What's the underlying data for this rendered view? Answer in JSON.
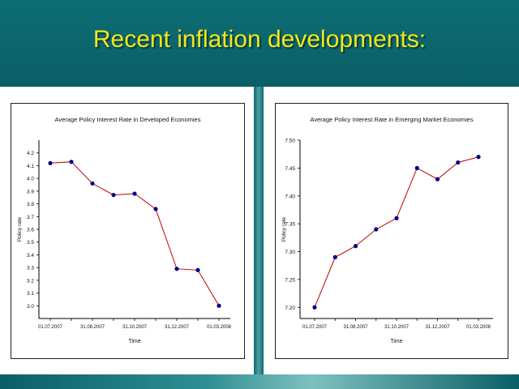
{
  "slide": {
    "title": "Recent inflation developments:"
  },
  "colors": {
    "header_bg": "#0b6a70",
    "title_text": "#f2e61a",
    "series_line": "#c00000",
    "series_marker": "#00008b"
  },
  "chart_data": [
    {
      "type": "line",
      "title": "Average Policy Interest Rate in Developed Economies",
      "xlabel": "Time",
      "ylabel": "Policy rate",
      "ylim": [
        2.9,
        4.3
      ],
      "yticks": [
        3.0,
        3.1,
        3.2,
        3.3,
        3.4,
        3.5,
        3.6,
        3.7,
        3.8,
        3.9,
        4.0,
        4.1,
        4.2
      ],
      "ytick_labels": [
        "3.0",
        "3.1",
        "3.2",
        "3.3",
        "3.4",
        "3.5",
        "3.6",
        "3.7",
        "3.8",
        "3.9",
        "4.0",
        "4.1",
        "4.2"
      ],
      "xtick_labels": [
        "01.07.2007",
        "31.08.2007",
        "31.10.2007",
        "31.12.2007",
        "01.03.2008"
      ],
      "xtick_positions": [
        0,
        2,
        4,
        6,
        8
      ],
      "x_count": 9,
      "values": [
        4.12,
        4.13,
        3.96,
        3.87,
        3.88,
        3.76,
        3.29,
        3.28,
        3.0
      ],
      "grid": false
    },
    {
      "type": "line",
      "title": "Average Policy Interest Rate in Emerging Market Economies",
      "xlabel": "Time",
      "ylabel": "Policy rate",
      "ylim": [
        7.18,
        7.5
      ],
      "yticks": [
        7.2,
        7.25,
        7.3,
        7.35,
        7.4,
        7.45,
        7.5
      ],
      "ytick_labels": [
        "7.20",
        "7.25",
        "7.30",
        "7.35",
        "7.40",
        "7.45",
        "7.50"
      ],
      "xtick_labels": [
        "01.07.2007",
        "31.08.2007",
        "31.10.2007",
        "31.12.2007",
        "01.03.2008"
      ],
      "xtick_positions": [
        0,
        2,
        4,
        6,
        8
      ],
      "x_count": 9,
      "values": [
        7.2,
        7.29,
        7.31,
        7.34,
        7.36,
        7.45,
        7.43,
        7.46,
        7.47
      ],
      "grid": false
    }
  ]
}
